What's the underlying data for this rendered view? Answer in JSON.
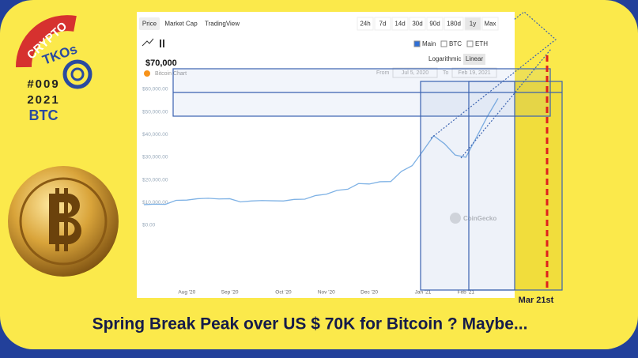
{
  "logo": {
    "top": "CRYPTO",
    "name": "TKOs",
    "issue": "#009",
    "year": "2021",
    "coin": "BTC"
  },
  "toolbar": {
    "tabs": [
      "Price",
      "Market Cap",
      "TradingView"
    ],
    "ranges": [
      "24h",
      "7d",
      "14d",
      "30d",
      "90d",
      "180d",
      "1y",
      "Max"
    ],
    "compare": [
      "Main",
      "BTC",
      "ETH"
    ],
    "scales": [
      "Logarithmic",
      "Linear"
    ]
  },
  "price_label": "$70,000",
  "chart_name": "Bitcoin Chart",
  "date_range": {
    "from_label": "From",
    "from": "Jul 5, 2020",
    "to_label": "To",
    "to": "Feb 19, 2021"
  },
  "watermark": "CoinGecko",
  "annotation": "Mar 21st",
  "headline": "Spring Break Peak  over  US $ 70K for Bitcoin ? Maybe...",
  "chart_data": {
    "type": "line",
    "categories": [
      null,
      null,
      null,
      null,
      "Aug '20",
      null,
      null,
      null,
      "Sep '20",
      null,
      null,
      null,
      null,
      "Oct '20",
      null,
      null,
      null,
      "Nov '20",
      null,
      null,
      null,
      "Dec '20",
      null,
      null,
      null,
      null,
      "Jan '21",
      null,
      null,
      null,
      "Feb '21",
      null,
      null,
      null
    ],
    "series": [
      {
        "color": "#7fb2e5",
        "values": [
          9100,
          9300,
          9200,
          11000,
          11100,
          11700,
          11900,
          11600,
          11700,
          10300,
          10700,
          10900,
          10800,
          10700,
          11400,
          11500,
          13100,
          13700,
          15400,
          15900,
          18400,
          18200,
          19200,
          19300,
          23800,
          26300,
          32800,
          39500,
          36000,
          31000,
          30000,
          38900,
          48000,
          56000
        ]
      }
    ],
    "ylim": [
      0,
      60000
    ],
    "yticks": [
      {
        "value": 0,
        "label": "$0.00"
      },
      {
        "value": 10000,
        "label": "$10,000.00"
      },
      {
        "value": 20000,
        "label": "$20,000.00"
      },
      {
        "value": 30000,
        "label": "$30,000.00"
      },
      {
        "value": 40000,
        "label": "$40,000.00"
      },
      {
        "value": 50000,
        "label": "$50,000.00"
      },
      {
        "value": 60000,
        "label": "$60,000.00"
      }
    ],
    "grid": false
  }
}
